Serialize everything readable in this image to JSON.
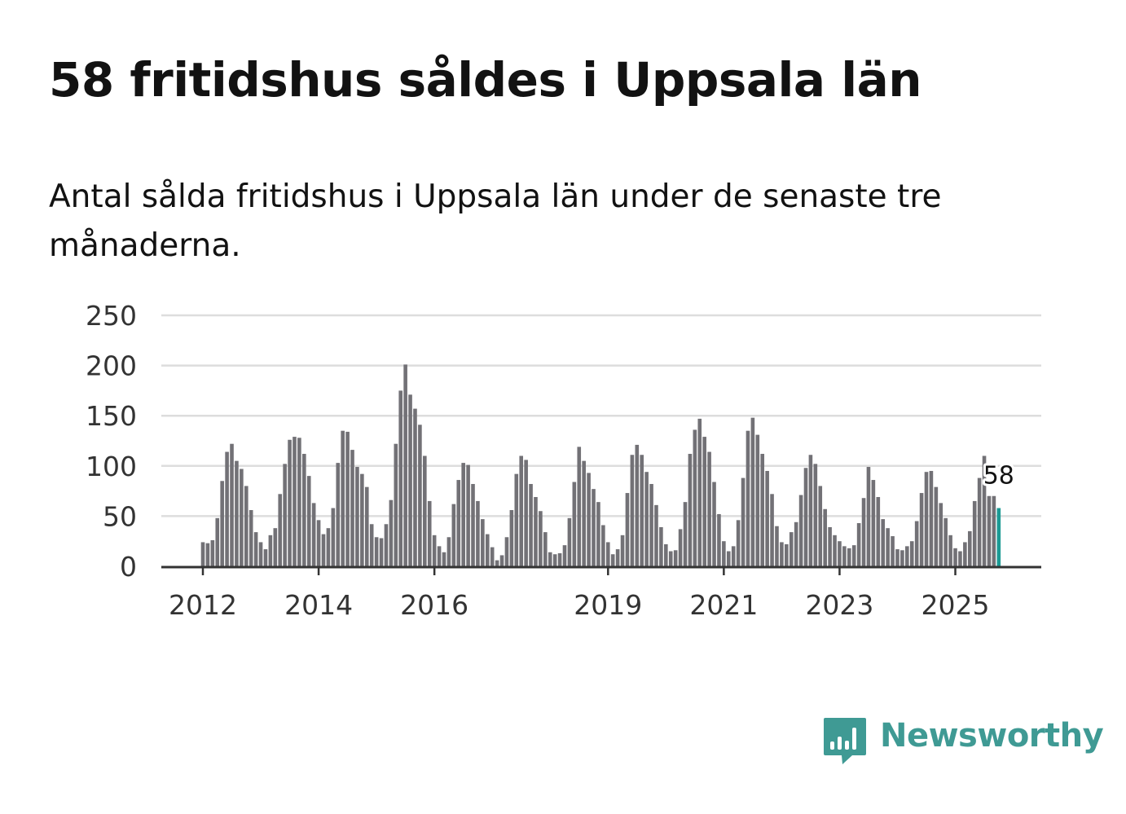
{
  "title": "58 fritidshus såldes i Uppsala län",
  "subtitle": "Antal sålda fritidshus i Uppsala län under de senaste tre månaderna.",
  "brand": {
    "name": "Newsworthy",
    "icon": "newsworthy-logo-icon",
    "color": "#3f9a94"
  },
  "colors": {
    "bar": "#727176",
    "highlight": "#1b9a94",
    "grid": "#dddddd",
    "axis": "#333333"
  },
  "chart_data": {
    "type": "bar",
    "title": "58 fritidshus såldes i Uppsala län",
    "xlabel": "",
    "ylabel": "",
    "ylim": [
      0,
      250
    ],
    "yticks": [
      0,
      50,
      100,
      150,
      200,
      250
    ],
    "grid": true,
    "legend": "none",
    "first_month": "2012-01",
    "xtick_labels": [
      {
        "label": "2012",
        "index": 0
      },
      {
        "label": "2014",
        "index": 24
      },
      {
        "label": "2016",
        "index": 48
      },
      {
        "label": "2019",
        "index": 84
      },
      {
        "label": "2021",
        "index": 108
      },
      {
        "label": "2023",
        "index": 132
      },
      {
        "label": "2025",
        "index": 156
      }
    ],
    "highlight_label": "58",
    "values": [
      24,
      23,
      26,
      48,
      85,
      114,
      122,
      105,
      97,
      80,
      56,
      34,
      24,
      17,
      31,
      38,
      72,
      102,
      126,
      129,
      128,
      112,
      90,
      63,
      46,
      32,
      38,
      58,
      103,
      135,
      134,
      116,
      99,
      92,
      79,
      42,
      29,
      28,
      42,
      66,
      122,
      175,
      201,
      171,
      157,
      141,
      110,
      65,
      31,
      20,
      14,
      29,
      62,
      86,
      103,
      101,
      82,
      65,
      47,
      32,
      19,
      6,
      11,
      29,
      56,
      92,
      110,
      106,
      82,
      69,
      55,
      34,
      14,
      12,
      13,
      21,
      48,
      84,
      119,
      105,
      93,
      77,
      64,
      41,
      24,
      12,
      17,
      31,
      73,
      111,
      121,
      111,
      94,
      82,
      61,
      39,
      22,
      15,
      16,
      37,
      64,
      112,
      136,
      147,
      129,
      114,
      84,
      52,
      25,
      15,
      20,
      46,
      88,
      135,
      148,
      131,
      112,
      95,
      72,
      40,
      24,
      22,
      34,
      44,
      71,
      98,
      111,
      102,
      80,
      57,
      39,
      31,
      25,
      20,
      18,
      21,
      43,
      68,
      99,
      86,
      69,
      47,
      38,
      30,
      17,
      16,
      20,
      25,
      45,
      73,
      94,
      95,
      79,
      63,
      48,
      31,
      18,
      15,
      24,
      35,
      65,
      88,
      110,
      70,
      70,
      58
    ]
  }
}
